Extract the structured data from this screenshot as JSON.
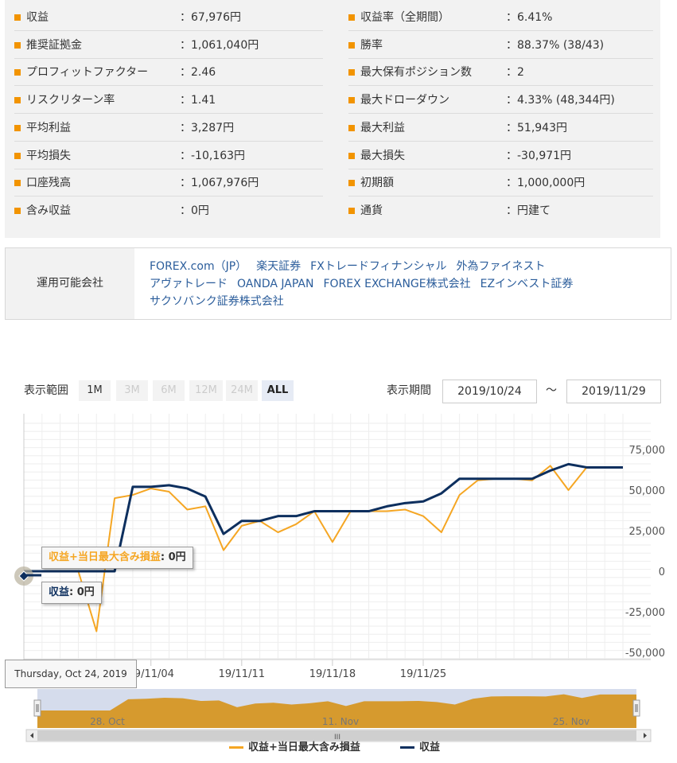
{
  "stats": {
    "left": [
      {
        "label": "収益",
        "value": "：67,976円"
      },
      {
        "label": "推奨証拠金",
        "value": "：1,061,040円"
      },
      {
        "label": "プロフィットファクター",
        "value": "：2.46"
      },
      {
        "label": "リスクリターン率",
        "value": "：1.41"
      },
      {
        "label": "平均利益",
        "value": "：3,287円"
      },
      {
        "label": "平均損失",
        "value": "：-10,163円"
      },
      {
        "label": "口座残高",
        "value": "：1,067,976円"
      },
      {
        "label": "含み収益",
        "value": "：0円"
      }
    ],
    "right": [
      {
        "label": "収益率（全期間）",
        "value": "：6.41%"
      },
      {
        "label": "勝率",
        "value": "：88.37% (38/43)"
      },
      {
        "label": "最大保有ポジション数",
        "value": "：2"
      },
      {
        "label": "最大ドローダウン",
        "value": "：4.33% (48,344円)"
      },
      {
        "label": "最大利益",
        "value": "：51,943円"
      },
      {
        "label": "最大損失",
        "value": "：-30,971円"
      },
      {
        "label": "初期額",
        "value": "：1,000,000円"
      },
      {
        "label": "通貨",
        "value": "：円建て"
      }
    ]
  },
  "companies": {
    "header": "運用可能会社",
    "items": [
      "FOREX.com（JP）",
      "楽天証券",
      "FXトレードフィナンシャル",
      "外為ファイネスト",
      "アヴァトレード",
      "OANDA JAPAN",
      "FOREX EXCHANGE株式会社",
      "EZインベスト証券",
      "サクソバンク証券株式会社"
    ]
  },
  "controls": {
    "range_label": "表示範囲",
    "range_buttons": [
      "1M",
      "3M",
      "6M",
      "12M",
      "24M",
      "ALL"
    ],
    "period_label": "表示期間",
    "from_date": "2019/10/24",
    "tilde": "～",
    "to_date": "2019/11/29"
  },
  "tooltips": {
    "series1_name": "収益+当日最大含み損益",
    "series1_value": ": 0円",
    "series2_name": "収益",
    "series2_value": ": 0円",
    "x_label": "Thursday, Oct 24, 2019"
  },
  "navigator": {
    "labels": [
      "28. Oct",
      "11. Nov",
      "25. Nov"
    ],
    "scroll_grip": "III"
  },
  "colors": {
    "series1": "#f5a623",
    "series2": "#0d2f5e",
    "bullet": "#f29400",
    "link": "#2b5d9b"
  },
  "chart_data": {
    "type": "line",
    "x": [
      "2019-10-24",
      "2019-10-25",
      "2019-10-28",
      "2019-10-29",
      "2019-10-30",
      "2019-10-31",
      "2019-11-01",
      "2019-11-04",
      "2019-11-05",
      "2019-11-06",
      "2019-11-07",
      "2019-11-08",
      "2019-11-11",
      "2019-11-12",
      "2019-11-13",
      "2019-11-14",
      "2019-11-15",
      "2019-11-18",
      "2019-11-19",
      "2019-11-20",
      "2019-11-21",
      "2019-11-22",
      "2019-11-25",
      "2019-11-26",
      "2019-11-27",
      "2019-11-28",
      "2019-11-29"
    ],
    "x_tick_labels": [
      "19/11/04",
      "19/11/11",
      "19/11/18",
      "19/11/25"
    ],
    "y_tick_labels": [
      "75,000",
      "50,000",
      "25,000",
      "0",
      "-25,000",
      "-50,000"
    ],
    "ylim": [
      -50000,
      100000
    ],
    "grid": true,
    "legend": "bottom",
    "series": [
      {
        "name": "収益+当日最大含み損益",
        "values": [
          0,
          0,
          0,
          0,
          -37000,
          45000,
          47000,
          51000,
          49000,
          38000,
          40000,
          13000,
          28000,
          31000,
          24000,
          29000,
          37000,
          18000,
          37000,
          37000,
          37000,
          38000,
          34000,
          24000,
          47000,
          56000,
          57000
        ]
      },
      {
        "name": "収益",
        "values": [
          0,
          0,
          0,
          0,
          0,
          0,
          52000,
          52000,
          53000,
          51000,
          46000,
          23000,
          31000,
          31000,
          34000,
          34000,
          37000,
          37000,
          37000,
          37000,
          40000,
          42000,
          43000,
          48000,
          57000,
          57000,
          57000
        ]
      }
    ],
    "extra_tail": {
      "series1": [
        57000,
        56000,
        65000,
        50000,
        64000,
        64000,
        64000
      ],
      "series2": [
        57000,
        57000,
        62000,
        66000,
        64000,
        64000,
        64000
      ]
    }
  }
}
